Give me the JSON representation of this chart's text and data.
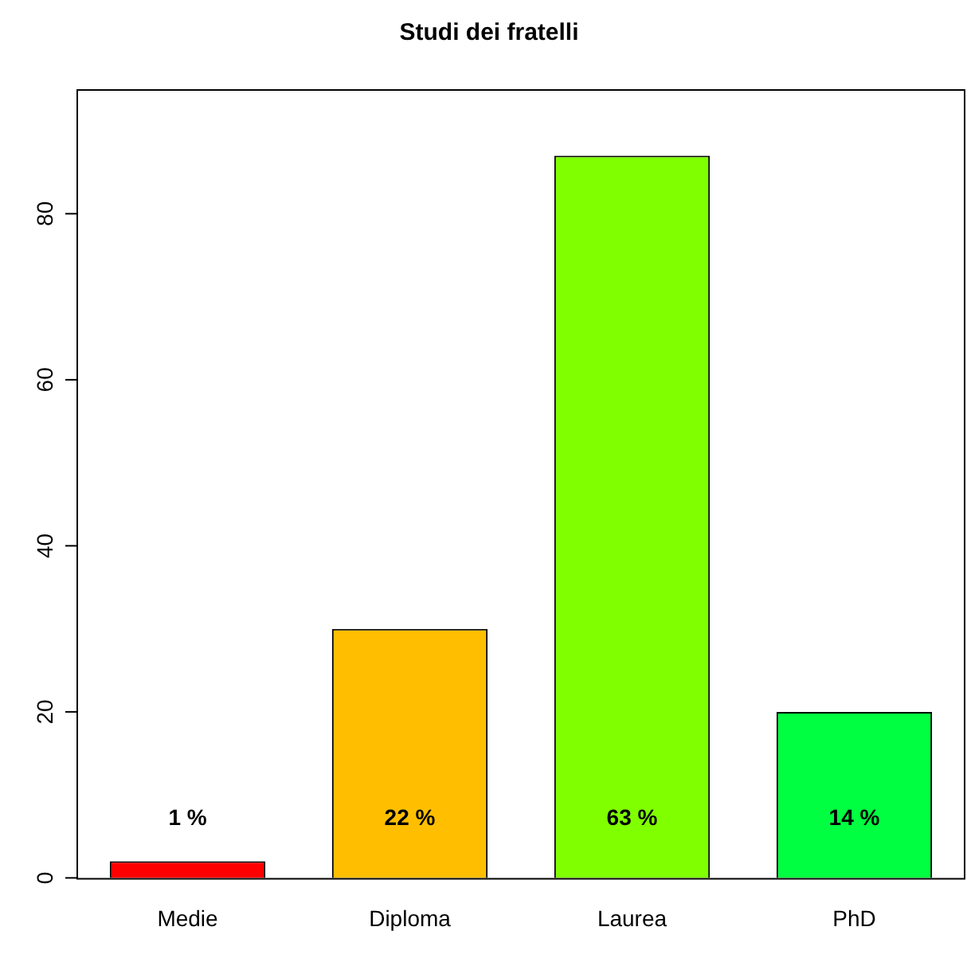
{
  "chart_data": {
    "type": "bar",
    "title": "Studi dei fratelli",
    "categories": [
      "Medie",
      "Diploma",
      "Laurea",
      "PhD"
    ],
    "values": [
      2,
      30,
      87,
      20
    ],
    "colors": [
      "#ff0000",
      "#ffbf00",
      "#80ff00",
      "#00ff40"
    ],
    "annotations": [
      "1 %",
      "22 %",
      "63 %",
      "14 %"
    ],
    "ylim": [
      0,
      95
    ],
    "yticks": [
      0,
      20,
      40,
      60,
      80
    ],
    "grid": false,
    "legend": false
  }
}
